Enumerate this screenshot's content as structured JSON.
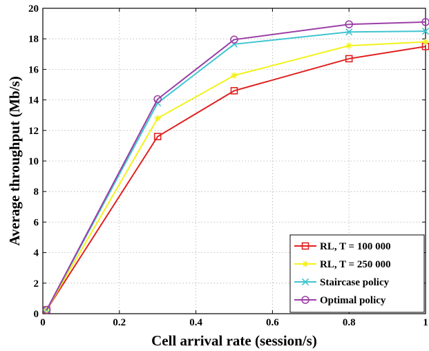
{
  "chart_data": {
    "type": "line",
    "title": "",
    "xlabel": "Cell arrival rate (session/s)",
    "ylabel": "Average throughput (Mb/s)",
    "xlim": [
      0,
      1
    ],
    "ylim": [
      0,
      20
    ],
    "xticks": [
      0,
      0.2,
      0.4,
      0.6,
      0.8,
      1
    ],
    "yticks": [
      0,
      2,
      4,
      6,
      8,
      10,
      12,
      14,
      16,
      18,
      20
    ],
    "xtick_labels": [
      "0",
      "0.2",
      "0.4",
      "0.6",
      "0.8",
      "1"
    ],
    "ytick_labels": [
      "0",
      "2",
      "4",
      "6",
      "8",
      "10",
      "12",
      "14",
      "16",
      "18",
      "20"
    ],
    "grid": true,
    "legend_position": "bottom-right",
    "x": [
      0.01,
      0.3,
      0.5,
      0.8,
      1.0
    ],
    "series": [
      {
        "name": "RL, T = 100 000",
        "values": [
          0.25,
          11.6,
          14.6,
          16.7,
          17.5
        ],
        "color": "#e02020",
        "marker": "square"
      },
      {
        "name": "RL, T = 250 000",
        "values": [
          0.25,
          12.8,
          15.6,
          17.55,
          17.8
        ],
        "color": "#f2f21a",
        "marker": "star"
      },
      {
        "name": "Staircase policy",
        "values": [
          0.25,
          13.8,
          17.65,
          18.45,
          18.5
        ],
        "color": "#3fc4d0",
        "marker": "x"
      },
      {
        "name": "Optimal policy",
        "values": [
          0.25,
          14.05,
          17.95,
          18.95,
          19.1
        ],
        "color": "#9b3fa6",
        "marker": "circle"
      }
    ]
  }
}
